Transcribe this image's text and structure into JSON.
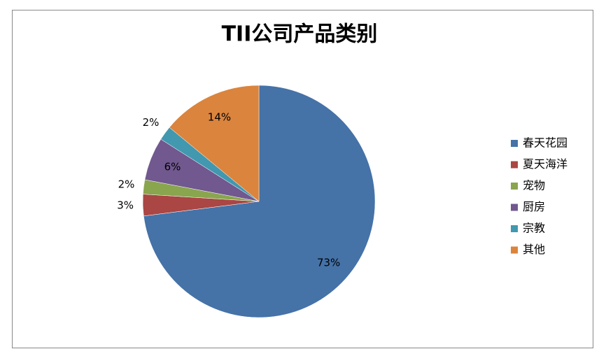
{
  "chart_data": {
    "type": "pie",
    "title": "TII公司产品类别",
    "categories": [
      "春天花园",
      "夏天海洋",
      "宠物",
      "厨房",
      "宗教",
      "其他"
    ],
    "values": [
      73,
      3,
      2,
      6,
      2,
      14
    ],
    "value_labels": [
      "73%",
      "3%",
      "2%",
      "6%",
      "2%",
      "14%"
    ],
    "colors": [
      "#4572a7",
      "#aa4643",
      "#89a54e",
      "#71588f",
      "#4198af",
      "#db843d"
    ],
    "legend": "right"
  }
}
